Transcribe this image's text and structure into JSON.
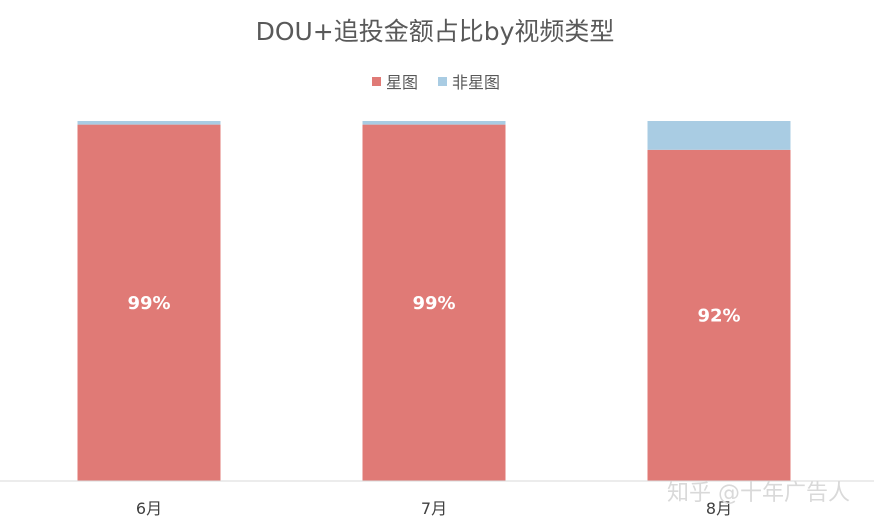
{
  "chart_data": {
    "type": "bar",
    "stacked": true,
    "percent_stacked": true,
    "title": "DOU+追投金额占比by视频类型",
    "categories": [
      "6月",
      "7月",
      "8月"
    ],
    "series": [
      {
        "name": "星图",
        "values": [
          99,
          99,
          92
        ],
        "color": "#e07a76",
        "data_labels": [
          "99%",
          "99%",
          "92%"
        ]
      },
      {
        "name": "非星图",
        "values": [
          1,
          1,
          8
        ],
        "color": "#a9cce3"
      }
    ],
    "ylim": [
      0,
      100
    ],
    "legend_position": "top",
    "grid": false
  },
  "watermark": "知乎 @十年广告人"
}
